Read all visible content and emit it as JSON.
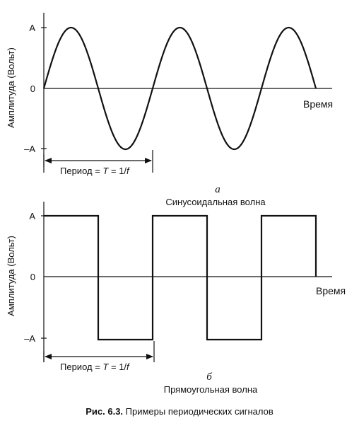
{
  "panels": [
    {
      "letter": "а",
      "subtitle": "Синусоидальная волна",
      "ylabel": "Амплитуда (Вольт)",
      "xlabel": "Время",
      "ticks": {
        "top": "A",
        "zero": "0",
        "bottom": "–A"
      },
      "period_label_prefix": "Период = ",
      "period_label_T": "T",
      "period_label_eq": " = 1/",
      "period_label_f": "f",
      "wave": "sine",
      "cycles": 2.5
    },
    {
      "letter": "б",
      "subtitle": "Прямоугольная волна",
      "ylabel": "Амплитуда (Вольт)",
      "xlabel": "Время",
      "ticks": {
        "top": "A",
        "zero": "0",
        "bottom": "–A"
      },
      "period_label_prefix": "Период = ",
      "period_label_T": "T",
      "period_label_eq": " = 1/",
      "period_label_f": "f",
      "wave": "square",
      "cycles": 2.5
    }
  ],
  "caption": {
    "number": "Рис. 6.3.",
    "text": " Примеры периодических сигналов"
  }
}
